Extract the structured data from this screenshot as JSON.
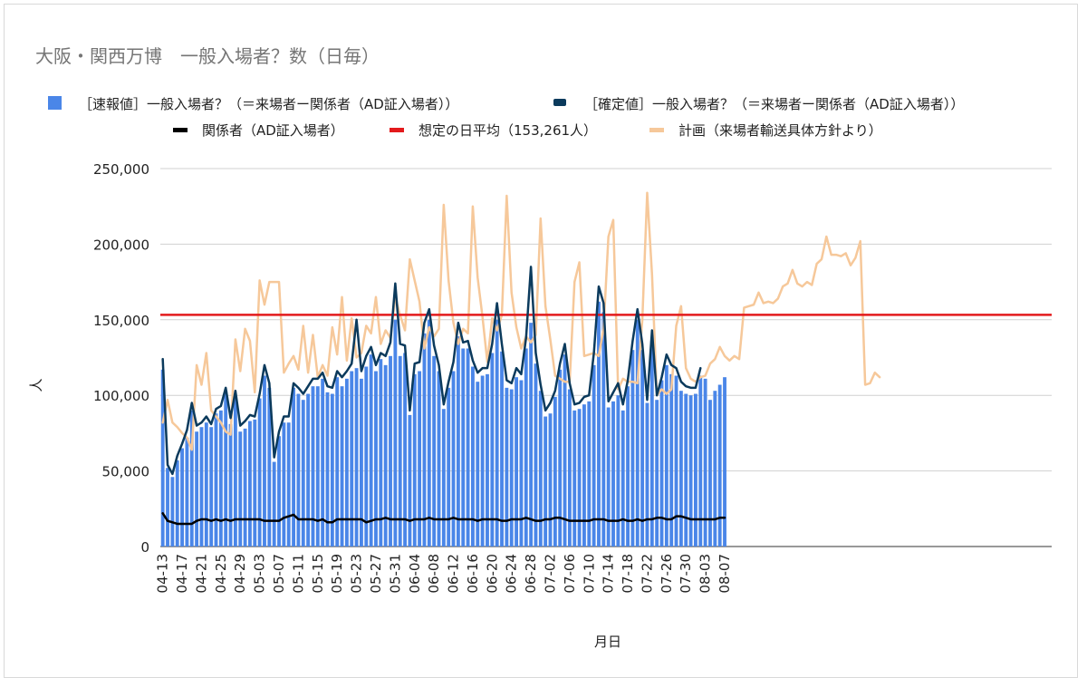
{
  "chart_data": {
    "type": "line",
    "title": "大阪・関西万博　一般入場者？数（日毎）",
    "xlabel": "月日",
    "ylabel": "人",
    "ylim": [
      0,
      250000
    ],
    "yticks": [
      0,
      50000,
      100000,
      150000,
      200000,
      250000
    ],
    "ytick_labels": [
      "0",
      "50,000",
      "100,000",
      "150,000",
      "200,000",
      "250,000"
    ],
    "xtick_labels": [
      "04-13",
      "04-17",
      "04-21",
      "04-25",
      "04-29",
      "05-03",
      "05-07",
      "05-11",
      "05-15",
      "05-19",
      "05-23",
      "05-27",
      "05-31",
      "06-04",
      "06-08",
      "06-12",
      "06-16",
      "06-20",
      "06-24",
      "06-28",
      "07-02",
      "07-06",
      "07-10",
      "07-14",
      "07-18",
      "07-22",
      "07-26",
      "07-30",
      "08-03",
      "08-07"
    ],
    "start_date": "04-13",
    "total_days": 184,
    "legend": [
      {
        "key": "prelim",
        "label": "［速報値］一般入場者？（＝来場者ー関係者（AD証入場者））",
        "color": "#4a86e8",
        "marker": "square"
      },
      {
        "key": "confirmed",
        "label": "［確定値］一般入場者？（＝来場者ー関係者（AD証入場者））",
        "color": "#0b3a5c",
        "marker": "line"
      },
      {
        "key": "staff",
        "label": "関係者（AD証入場者）",
        "color": "#000000",
        "marker": "line"
      },
      {
        "key": "avg",
        "label": "想定の日平均（153,261人）",
        "color": "#e31a1c",
        "marker": "line"
      },
      {
        "key": "plan",
        "label": "計画（来場者輸送具体方針より）",
        "color": "#f6c89a",
        "marker": "line"
      }
    ],
    "series": [
      {
        "name": "［速報値］一般入場者？（＝来場者ー関係者（AD証入場者））",
        "type": "bar",
        "color": "#4a86e8",
        "values": [
          117000,
          52000,
          46000,
          57000,
          65000,
          72000,
          90000,
          76000,
          79000,
          82000,
          79000,
          88000,
          90000,
          103000,
          81000,
          98000,
          76000,
          78000,
          83000,
          84000,
          98000,
          113000,
          105000,
          56000,
          73000,
          82000,
          82000,
          105000,
          101000,
          97000,
          101000,
          106000,
          106000,
          111000,
          102000,
          101000,
          112000,
          106000,
          111000,
          116000,
          118000,
          111000,
          119000,
          127000,
          116000,
          124000,
          120000,
          126000,
          150000,
          126000,
          128000,
          87000,
          114000,
          116000,
          141000,
          150000,
          126000,
          116000,
          91000,
          105000,
          116000,
          139000,
          131000,
          131000,
          119000,
          109000,
          113000,
          114000,
          128000,
          150000,
          129000,
          105000,
          104000,
          112000,
          110000,
          131000,
          148000,
          121000,
          103000,
          86000,
          88000,
          99000,
          117000,
          127000,
          104000,
          90000,
          91000,
          94000,
          96000,
          120000,
          162000,
          155000,
          92000,
          96000,
          100000,
          90000,
          106000,
          130000,
          150000,
          130000,
          95000,
          136000,
          97000,
          110000,
          120000,
          114000,
          113000,
          103000,
          101000,
          100000,
          101000,
          113000,
          111000,
          97000,
          103000,
          107000,
          112000
        ]
      },
      {
        "name": "［確定値］一般入場者？（＝来場者ー関係者（AD証入場者））",
        "type": "line",
        "color": "#0b3a5c",
        "values": [
          124000,
          54000,
          48000,
          60000,
          68000,
          77000,
          95000,
          80000,
          82000,
          86000,
          81000,
          91000,
          93000,
          105000,
          85000,
          103000,
          80000,
          83000,
          87000,
          86000,
          101000,
          120000,
          108000,
          59000,
          76000,
          86000,
          86000,
          108000,
          105000,
          101000,
          106000,
          111000,
          111000,
          115000,
          106000,
          105000,
          116000,
          112000,
          116000,
          121000,
          150000,
          116000,
          126000,
          132000,
          120000,
          128000,
          126000,
          135000,
          174000,
          134000,
          133000,
          90000,
          121000,
          122000,
          148000,
          157000,
          133000,
          120000,
          94000,
          109000,
          122000,
          148000,
          135000,
          136000,
          123000,
          115000,
          118000,
          118000,
          134000,
          161000,
          134000,
          110000,
          108000,
          118000,
          114000,
          138000,
          185000,
          128000,
          107000,
          90000,
          95000,
          103000,
          121000,
          134000,
          108000,
          94000,
          95000,
          99000,
          100000,
          128000,
          172000,
          161000,
          96000,
          102000,
          108000,
          94000,
          110000,
          136000,
          157000,
          134000,
          97000,
          143000,
          100000,
          112000,
          127000,
          120000,
          118000,
          109000,
          106000,
          105000,
          105000,
          118000
        ]
      },
      {
        "name": "関係者（AD証入場者）",
        "type": "line",
        "color": "#000000",
        "values": [
          22000,
          17000,
          16000,
          15000,
          15000,
          15000,
          15000,
          17000,
          18000,
          18000,
          17000,
          18000,
          17000,
          18000,
          17000,
          18000,
          18000,
          18000,
          18000,
          18000,
          18000,
          17000,
          17000,
          17000,
          17000,
          19000,
          20000,
          21000,
          18000,
          18000,
          18000,
          18000,
          17000,
          18000,
          16000,
          16000,
          18000,
          18000,
          18000,
          18000,
          18000,
          18000,
          16000,
          17000,
          18000,
          18000,
          19000,
          18000,
          18000,
          18000,
          18000,
          17000,
          18000,
          18000,
          18000,
          19000,
          18000,
          18000,
          18000,
          18000,
          19000,
          18000,
          18000,
          18000,
          18000,
          17000,
          18000,
          18000,
          18000,
          18000,
          17000,
          17000,
          18000,
          18000,
          18000,
          19000,
          18000,
          17000,
          17000,
          18000,
          18000,
          19000,
          19000,
          18000,
          17000,
          17000,
          17000,
          17000,
          17000,
          18000,
          18000,
          18000,
          17000,
          17000,
          17000,
          18000,
          17000,
          17000,
          18000,
          17000,
          18000,
          18000,
          19000,
          19000,
          18000,
          18000,
          20000,
          20000,
          19000,
          18000,
          18000,
          18000,
          18000,
          18000,
          18000,
          19000,
          19000
        ]
      },
      {
        "name": "想定の日平均（153,261人）",
        "type": "hline",
        "color": "#e31a1c",
        "value": 153261
      },
      {
        "name": "計画（来場者輸送具体方針より）",
        "type": "line",
        "color": "#f6c89a",
        "values": [
          82000,
          97000,
          82000,
          79000,
          75000,
          72000,
          64000,
          120000,
          107000,
          128000,
          90000,
          86000,
          82000,
          76000,
          74000,
          137000,
          116000,
          144000,
          136000,
          102000,
          176000,
          160000,
          175000,
          175000,
          175000,
          115000,
          121000,
          126000,
          117000,
          146000,
          115000,
          140000,
          112000,
          120000,
          113000,
          145000,
          127000,
          165000,
          123000,
          151000,
          125000,
          128000,
          146000,
          141000,
          165000,
          134000,
          143000,
          138000,
          165000,
          153000,
          143000,
          190000,
          176000,
          162000,
          131000,
          145000,
          139000,
          144000,
          226000,
          176000,
          148000,
          134000,
          144000,
          141000,
          225000,
          178000,
          152000,
          122000,
          151000,
          143000,
          153000,
          232000,
          168000,
          145000,
          131000,
          139000,
          135000,
          140000,
          217000,
          159000,
          137000,
          113000,
          111000,
          109000,
          109000,
          175000,
          188000,
          126000,
          127000,
          128000,
          126000,
          144000,
          205000,
          216000,
          104000,
          111000,
          109000,
          109000,
          108000,
          150000,
          234000,
          180000,
          100000,
          104000,
          101000,
          104000,
          146000,
          159000,
          118000,
          111000,
          109000,
          112000,
          113000,
          121000,
          124000,
          132000,
          126000,
          123000,
          126000,
          124000,
          158000,
          159000,
          160000,
          168000,
          161000,
          162000,
          161000,
          164000,
          172000,
          174000,
          183000,
          174000,
          172000,
          175000,
          173000,
          187000,
          190000,
          205000,
          193000,
          193000,
          192000,
          194000,
          186000,
          191000,
          202000,
          107000,
          108000,
          115000,
          112000
        ]
      }
    ]
  }
}
